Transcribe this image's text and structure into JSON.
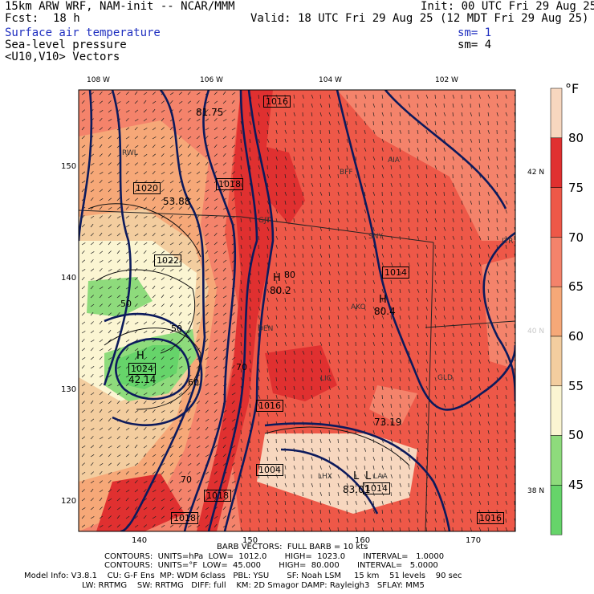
{
  "header": {
    "model": "15km ARW WRF, NAM-init -- NCAR/MMM",
    "init": "Init: 00 UTC Fri 29 Aug 25",
    "fcst_label": "Fcst:",
    "fcst_value": "18 h",
    "valid": "Valid: 18 UTC Fri 29 Aug 25 (12 MDT Fri 29 Aug 25)",
    "field1": "Surface air temperature",
    "field1_sm": "sm= 1",
    "field2": "Sea-level pressure",
    "field2_sm": "sm= 4",
    "field3": "<U10,V10> Vectors"
  },
  "axes": {
    "top_lon": [
      "108 W",
      "106 W",
      "104 W",
      "102 W"
    ],
    "right_lat": [
      "42 N",
      "40 N",
      "38 N"
    ],
    "left_y": [
      "150",
      "140",
      "130",
      "120"
    ],
    "bottom_x": [
      "140",
      "150",
      "160",
      "170"
    ]
  },
  "legend": {
    "unit": "°F",
    "labels": [
      "80",
      "75",
      "70",
      "65",
      "60",
      "55",
      "50",
      "45"
    ],
    "colors": [
      "#f7d7bf",
      "#e03030",
      "#ee5848",
      "#f4836b",
      "#f6a878",
      "#f3cd9f",
      "#fbf5d2",
      "#8edb7c",
      "#66d46a"
    ]
  },
  "map_labels": {
    "pressure_boxes": [
      "1016",
      "1018",
      "1020",
      "1022",
      "1014",
      "1016",
      "1004",
      "1018",
      "1018",
      "1014",
      "1016",
      "1024"
    ],
    "highs": [
      "H",
      "H",
      "H"
    ],
    "lows": [
      "L",
      "L"
    ],
    "values": [
      "80.2",
      "80.4",
      "42.14",
      "53.88",
      "73.19",
      "83.01",
      "81.75"
    ],
    "isotherm_labels": [
      "50",
      "50",
      "60",
      "70",
      "70",
      "80"
    ],
    "stations": [
      "RWL",
      "BFF",
      "AIA",
      "SNY",
      "AKO",
      "DEN",
      "LIC",
      "GLD",
      "LHX",
      "LAA",
      "GJT",
      "ITR"
    ]
  },
  "footer": {
    "barb": "BARB VECTORS:  FULL BARB = 10 kts",
    "contours1": "CONTOURS:  UNITS=hPa  LOW=  1012.0       HIGH=  1023.0       INTERVAL=   1.0000",
    "contours2": "CONTOURS:  UNITS=°F  LOW=  45.000       HIGH=  80.000       INTERVAL=   5.0000",
    "model_info": "Model Info: V3.8.1    CU: G-F Ens  MP: WDM 6class   PBL: YSU       SF: Noah LSM     15 km    51 levels    90 sec",
    "model_info2": "LW: RRTMG    SW: RRTMG   DIFF: full    KM: 2D Smagor DAMP: Rayleigh3   SFLAY: MM5"
  }
}
